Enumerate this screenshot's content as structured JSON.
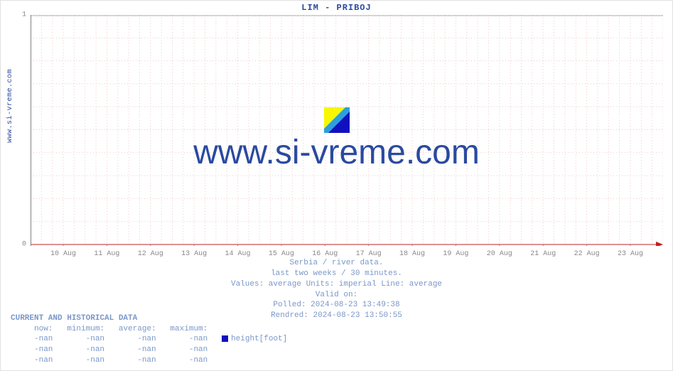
{
  "side_label": "www.si-vreme.com",
  "title": "LIM -  PRIBOJ",
  "chart": {
    "type": "line",
    "ylim": [
      0,
      1
    ],
    "yticks": [
      0,
      1
    ],
    "minor_y_count": 10,
    "xtick_labels": [
      "10 Aug",
      "11 Aug",
      "12 Aug",
      "13 Aug",
      "14 Aug",
      "15 Aug",
      "16 Aug",
      "17 Aug",
      "18 Aug",
      "19 Aug",
      "20 Aug",
      "21 Aug",
      "22 Aug",
      "23 Aug"
    ],
    "axis_color": "#808080",
    "major_grid_color": "#b0b0b0",
    "minor_grid_color": "#f0caca",
    "minor_grid_dash": "1,3",
    "arrow_color": "#c02020",
    "background_color": "#ffffff"
  },
  "watermark": {
    "text": "www.si-vreme.com",
    "color": "#2a4aa0",
    "fontsize": 48,
    "logo_colors": {
      "top_left": "#f7f700",
      "bottom_right": "#1010c0",
      "diag": "#2aa0e0"
    }
  },
  "subtext": {
    "line1": "Serbia / river data.",
    "line2": "last two weeks / 30 minutes.",
    "line3": "Values: average  Units: imperial  Line: average",
    "line4": "Valid on:",
    "line5": "Polled: 2024-08-23 13:49:38",
    "line6": "Rendred: 2024-08-23 13:50:55"
  },
  "historical": {
    "title": "CURRENT AND HISTORICAL DATA",
    "headers": {
      "now": "now:",
      "min": "minimum:",
      "avg": "average:",
      "max": "maximum:"
    },
    "rows": [
      {
        "now": "-nan",
        "min": "-nan",
        "avg": "-nan",
        "max": "-nan",
        "legend_color": "#1010c0",
        "legend_label": "height[foot]"
      },
      {
        "now": "-nan",
        "min": "-nan",
        "avg": "-nan",
        "max": "-nan"
      },
      {
        "now": "-nan",
        "min": "-nan",
        "avg": "-nan",
        "max": "-nan"
      }
    ]
  }
}
